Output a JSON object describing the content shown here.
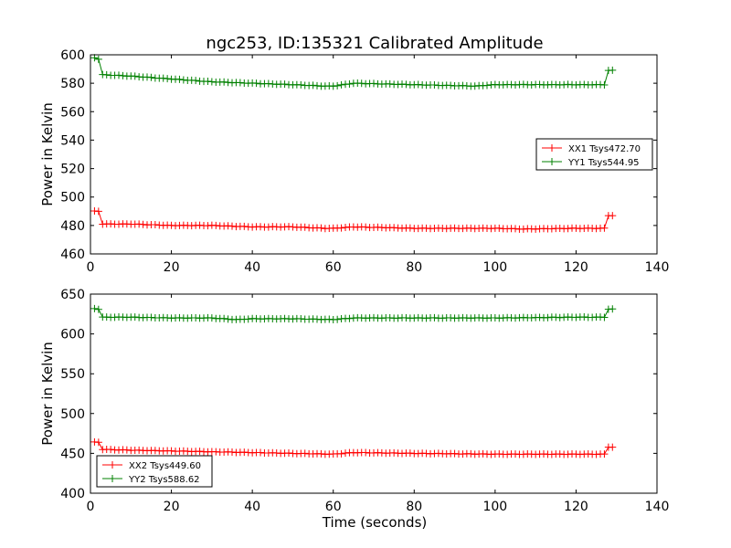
{
  "chart_data": [
    {
      "type": "line",
      "title": "ngc253, ID:135321 Calibrated Amplitude",
      "xlabel": "",
      "ylabel": "Power in Kelvin",
      "xlim": [
        0,
        140
      ],
      "ylim": [
        460,
        600
      ],
      "xticks": [
        "0",
        "20",
        "40",
        "60",
        "80",
        "100",
        "120",
        "140"
      ],
      "yticks": [
        "460",
        "480",
        "500",
        "520",
        "540",
        "560",
        "580",
        "600"
      ],
      "legend_position": "right",
      "marker": "plus",
      "grid": false,
      "series": [
        {
          "name": "XX1 Tsys472.70",
          "color": "#ff0000",
          "x": [
            1,
            2,
            3,
            10,
            20,
            30,
            40,
            50,
            58,
            60,
            65,
            80,
            100,
            107,
            120,
            127,
            128,
            129
          ],
          "y": [
            490,
            490,
            481,
            481,
            480,
            480,
            479,
            479,
            478,
            478,
            479,
            478,
            478,
            477.5,
            478,
            478,
            487,
            487
          ]
        },
        {
          "name": "YY1 Tsys544.95",
          "color": "#008000",
          "x": [
            1,
            2,
            3,
            10,
            20,
            30,
            40,
            50,
            58,
            60,
            65,
            80,
            95,
            100,
            120,
            127,
            128,
            129
          ],
          "y": [
            598,
            597,
            586,
            585,
            583,
            581,
            580,
            579,
            578,
            578,
            580,
            579,
            578,
            579,
            579,
            579,
            589,
            589
          ]
        }
      ]
    },
    {
      "type": "line",
      "title": "",
      "xlabel": "Time (seconds)",
      "ylabel": "Power in Kelvin",
      "xlim": [
        0,
        140
      ],
      "ylim": [
        400,
        650
      ],
      "xticks": [
        "0",
        "20",
        "40",
        "60",
        "80",
        "100",
        "120",
        "140"
      ],
      "yticks": [
        "400",
        "450",
        "500",
        "550",
        "600",
        "650"
      ],
      "legend_position": "lower left",
      "marker": "plus",
      "grid": false,
      "series": [
        {
          "name": "XX2 Tsys449.60",
          "color": "#ff0000",
          "x": [
            1,
            2,
            3,
            10,
            20,
            30,
            40,
            50,
            60,
            65,
            80,
            100,
            120,
            127,
            128,
            129
          ],
          "y": [
            464,
            464,
            455,
            454,
            453,
            452,
            451,
            450,
            449,
            451,
            450,
            449,
            449,
            449,
            458,
            458
          ]
        },
        {
          "name": "YY2 Tsys588.62",
          "color": "#008000",
          "x": [
            1,
            2,
            3,
            10,
            20,
            30,
            36,
            40,
            50,
            60,
            65,
            80,
            100,
            120,
            127,
            128,
            129
          ],
          "y": [
            632,
            631,
            621,
            621,
            620,
            620,
            618,
            619,
            619,
            618,
            620,
            620,
            620,
            621,
            621,
            631,
            631
          ]
        }
      ]
    }
  ]
}
